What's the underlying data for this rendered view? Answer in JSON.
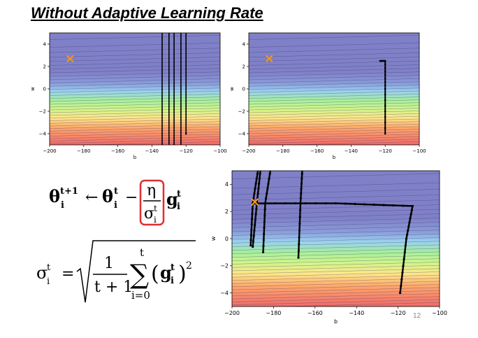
{
  "slide": {
    "title": "Without Adaptive Learning Rate",
    "page_number": "12"
  },
  "formula": {
    "update_lhs": "θ",
    "update_lhs_sup": "t+1",
    "update_lhs_sub": "i",
    "arrow": "←",
    "theta": "θ",
    "sup_t": "t",
    "sub_i": "i",
    "minus": "−",
    "eta": "η",
    "sigma": "σ",
    "g": "g",
    "equals": "=",
    "one": "1",
    "t_plus_1": "t + 1",
    "sum": "∑",
    "sum_top": "t",
    "sum_bottom": "i=0",
    "lparen": "(",
    "rparen": ")",
    "square": "2"
  },
  "chart_data": [
    {
      "type": "contour",
      "xlabel": "b",
      "ylabel": "w",
      "xlim": [
        -200,
        -100
      ],
      "ylim": [
        -5,
        5
      ],
      "xticks": [
        "−200",
        "−180",
        "−160",
        "−140",
        "−120",
        "−100"
      ],
      "yticks": [
        "4",
        "2",
        "0",
        "−2",
        "−4"
      ],
      "marker": {
        "b": -188,
        "w": 2.7,
        "symbol": "×",
        "color": "#ff9900"
      },
      "trajectories": [
        {
          "points": [
            [
              -120,
              -4
            ],
            [
              -120,
              5.5
            ]
          ]
        },
        {
          "points": [
            [
              -123,
              5.5
            ],
            [
              -123,
              -5
            ]
          ]
        },
        {
          "points": [
            [
              -127,
              -5
            ],
            [
              -127,
              5.5
            ]
          ]
        },
        {
          "points": [
            [
              -130,
              5.5
            ],
            [
              -130,
              -5
            ]
          ]
        },
        {
          "points": [
            [
              -134,
              -5
            ],
            [
              -134,
              5.5
            ]
          ]
        }
      ]
    },
    {
      "type": "contour",
      "xlabel": "b",
      "ylabel": "w",
      "xlim": [
        -200,
        -100
      ],
      "ylim": [
        -5,
        5
      ],
      "xticks": [
        "−200",
        "−180",
        "−160",
        "−140",
        "−120",
        "−100"
      ],
      "yticks": [
        "4",
        "2",
        "0",
        "−2",
        "−4"
      ],
      "marker": {
        "b": -188,
        "w": 2.7,
        "symbol": "×",
        "color": "#ff9900"
      },
      "trajectories": [
        {
          "points": [
            [
              -120,
              -4
            ],
            [
              -120,
              0
            ],
            [
              -120,
              2.5
            ],
            [
              -123,
              2.5
            ]
          ]
        }
      ]
    },
    {
      "type": "contour",
      "xlabel": "b",
      "ylabel": "w",
      "xlim": [
        -200,
        -100
      ],
      "ylim": [
        -5,
        5
      ],
      "xticks": [
        "−200",
        "−180",
        "−160",
        "−140",
        "−120",
        "−100"
      ],
      "yticks": [
        "4",
        "2",
        "0",
        "−2",
        "−4"
      ],
      "marker": {
        "b": -189,
        "w": 2.7,
        "symbol": "×",
        "color": "#ff9900"
      },
      "trajectories": [
        {
          "points": [
            [
              -119,
              -4
            ],
            [
              -116,
              0
            ],
            [
              -113,
              2.4
            ],
            [
              -150,
              2.6
            ],
            [
              -189,
              2.6
            ]
          ]
        },
        {
          "points": [
            [
              -168,
              -1.4
            ],
            [
              -167,
              2.6
            ],
            [
              -166,
              5.5
            ]
          ]
        },
        {
          "points": [
            [
              -185,
              -1
            ],
            [
              -184,
              2.6
            ],
            [
              -181,
              5.5
            ]
          ]
        },
        {
          "points": [
            [
              -190,
              -0.6
            ],
            [
              -188,
              2.6
            ],
            [
              -186,
              5.5
            ]
          ]
        },
        {
          "points": [
            [
              -191,
              -0.5
            ],
            [
              -190,
              2.6
            ],
            [
              -187,
              5.5
            ]
          ]
        }
      ]
    }
  ]
}
